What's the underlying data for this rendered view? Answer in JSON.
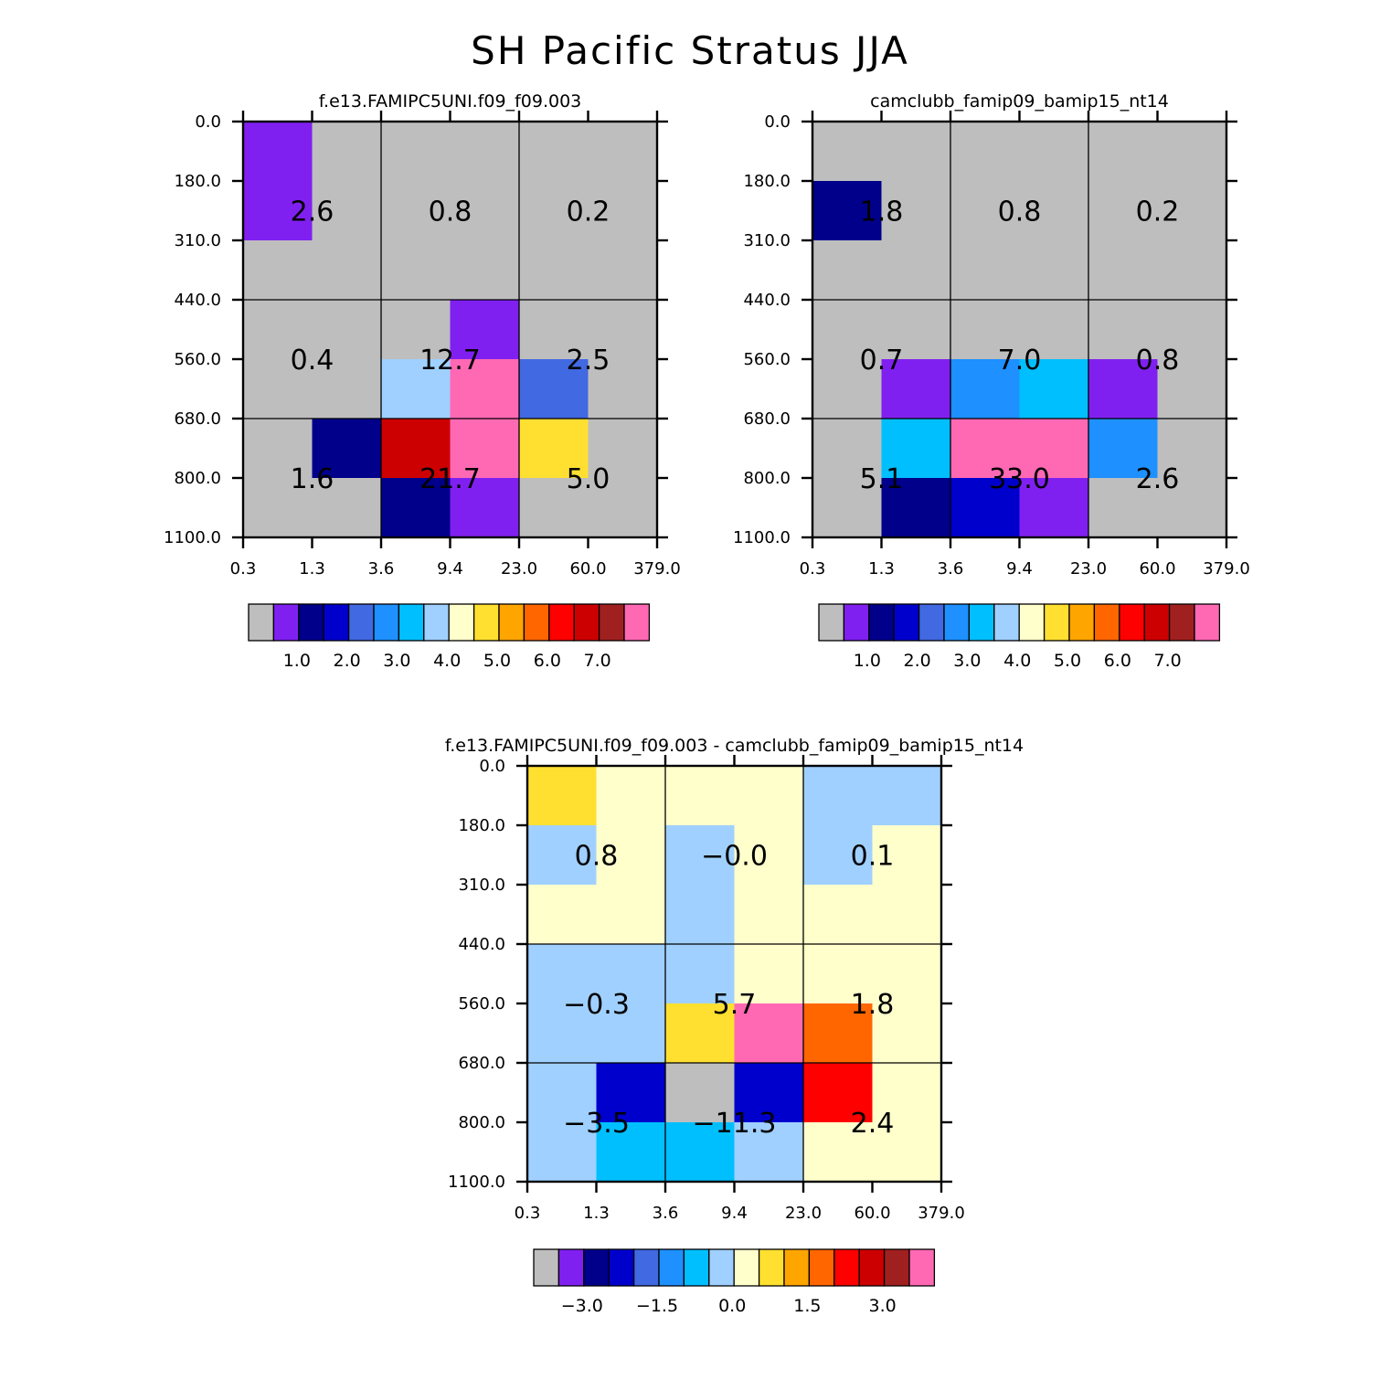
{
  "title": "SH Pacific Stratus JJA",
  "colors": {
    "palette": [
      "#bebebe",
      "#8020f0",
      "#00008b",
      "#0000cd",
      "#4169e1",
      "#1e90ff",
      "#00bfff",
      "#a0d0ff",
      "#ffffcc",
      "#ffe030",
      "#ffa500",
      "#ff6600",
      "#ff0000",
      "#cc0000",
      "#a02020",
      "#ff69b4"
    ],
    "frame": "#000000"
  },
  "chart_data": [
    {
      "type": "heatmap",
      "title": "f.e13.FAMIPC5UNI.f09_f09.003",
      "x_ticks": [
        "0.3",
        "1.3",
        "3.6",
        "9.4",
        "23.0",
        "60.0",
        "379.0"
      ],
      "y_ticks": [
        "0.0",
        "180.0",
        "310.0",
        "440.0",
        "560.0",
        "680.0",
        "800.0",
        "1100.0"
      ],
      "cells": [
        [
          1,
          0,
          0,
          0,
          0,
          0
        ],
        [
          1,
          0,
          0,
          0,
          0,
          0
        ],
        [
          0,
          0,
          0,
          0,
          0,
          0
        ],
        [
          0,
          0,
          0,
          1,
          0,
          0
        ],
        [
          0,
          0,
          7,
          15,
          4,
          0
        ],
        [
          0,
          2,
          13,
          15,
          9,
          0
        ],
        [
          0,
          0,
          2,
          1,
          0,
          0
        ]
      ],
      "box_values": [
        [
          "2.6",
          "0.8",
          "0.2"
        ],
        [
          "0.4",
          "12.7",
          "2.5"
        ],
        [
          "1.6",
          "21.7",
          "5.0"
        ]
      ],
      "colorbar_labels": [
        "1.0",
        "2.0",
        "3.0",
        "4.0",
        "5.0",
        "6.0",
        "7.0"
      ]
    },
    {
      "type": "heatmap",
      "title": "camclubb_famip09_bamip15_nt14",
      "x_ticks": [
        "0.3",
        "1.3",
        "3.6",
        "9.4",
        "23.0",
        "60.0",
        "379.0"
      ],
      "y_ticks": [
        "0.0",
        "180.0",
        "310.0",
        "440.0",
        "560.0",
        "680.0",
        "800.0",
        "1100.0"
      ],
      "cells": [
        [
          0,
          0,
          0,
          0,
          0,
          0
        ],
        [
          2,
          0,
          0,
          0,
          0,
          0
        ],
        [
          0,
          0,
          0,
          0,
          0,
          0
        ],
        [
          0,
          0,
          0,
          0,
          0,
          0
        ],
        [
          0,
          1,
          5,
          6,
          1,
          0
        ],
        [
          0,
          6,
          15,
          15,
          5,
          0
        ],
        [
          0,
          2,
          3,
          1,
          0,
          0
        ]
      ],
      "box_values": [
        [
          "1.8",
          "0.8",
          "0.2"
        ],
        [
          "0.7",
          "7.0",
          "0.8"
        ],
        [
          "5.1",
          "33.0",
          "2.6"
        ]
      ],
      "colorbar_labels": [
        "1.0",
        "2.0",
        "3.0",
        "4.0",
        "5.0",
        "6.0",
        "7.0"
      ]
    },
    {
      "type": "heatmap",
      "title": "f.e13.FAMIPC5UNI.f09_f09.003 - camclubb_famip09_bamip15_nt14",
      "x_ticks": [
        "0.3",
        "1.3",
        "3.6",
        "9.4",
        "23.0",
        "60.0",
        "379.0"
      ],
      "y_ticks": [
        "0.0",
        "180.0",
        "310.0",
        "440.0",
        "560.0",
        "680.0",
        "800.0",
        "1100.0"
      ],
      "cells": [
        [
          9,
          8,
          8,
          8,
          7,
          7
        ],
        [
          7,
          8,
          7,
          8,
          7,
          8
        ],
        [
          8,
          8,
          7,
          8,
          8,
          8
        ],
        [
          7,
          7,
          7,
          8,
          8,
          8
        ],
        [
          7,
          7,
          9,
          15,
          11,
          8
        ],
        [
          7,
          3,
          0,
          3,
          12,
          8
        ],
        [
          7,
          6,
          6,
          7,
          8,
          8
        ]
      ],
      "box_values": [
        [
          "0.8",
          "-0.0",
          "0.1"
        ],
        [
          "-0.3",
          "5.7",
          "1.8"
        ],
        [
          "-3.5",
          "-11.3",
          "2.4"
        ]
      ],
      "colorbar_labels": [
        "-3.0",
        "-1.5",
        "0.0",
        "1.5",
        "3.0"
      ]
    }
  ]
}
